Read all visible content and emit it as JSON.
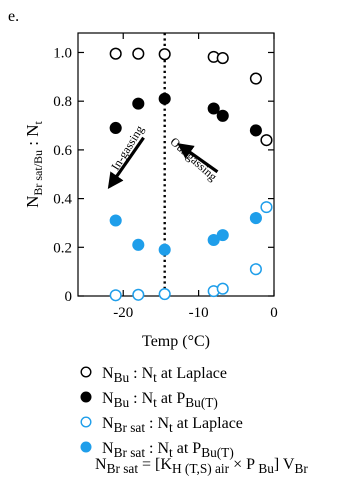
{
  "panel_label": "e.",
  "colors": {
    "black": "#000000",
    "blue": "#1f9eea",
    "axis": "#000000"
  },
  "chart_data": {
    "type": "scatter",
    "xlabel": "Temp (°C)",
    "ylabel_main": "N",
    "ylabel_sub1": "Br sat/Bu",
    "ylabel_sep": " : N",
    "ylabel_sub2": "t",
    "xlim": [
      -26,
      0
    ],
    "ylim": [
      0,
      1.08
    ],
    "xticks": [
      -20,
      -10,
      0
    ],
    "yticks": [
      0,
      0.2,
      0.4,
      0.6,
      0.8,
      1.0
    ],
    "ytick_labels": [
      "0",
      "0.2",
      "0.4",
      "0.6",
      "0.8",
      "1.0"
    ],
    "vline_x": -14.5,
    "annotations": [
      {
        "text": "In-gassing",
        "x": -19,
        "y": 0.6,
        "angle": -58,
        "arrow_from": [
          -17.3,
          0.65
        ],
        "arrow_to": [
          -21.8,
          0.45
        ]
      },
      {
        "text": "Out-gassing",
        "x": -11,
        "y": 0.55,
        "angle": 42,
        "arrow_from": [
          -7.5,
          0.51
        ],
        "arrow_to": [
          -12.5,
          0.62
        ]
      }
    ],
    "series": [
      {
        "key": "bu_laplace",
        "color": "#000000",
        "filled": false,
        "points": [
          [
            -21,
            0.995
          ],
          [
            -18,
            0.995
          ],
          [
            -14.5,
            0.993
          ],
          [
            -8,
            0.982
          ],
          [
            -6.8,
            0.977
          ],
          [
            -2.4,
            0.893
          ],
          [
            -1,
            0.64
          ]
        ]
      },
      {
        "key": "bu_p",
        "color": "#000000",
        "filled": true,
        "points": [
          [
            -21,
            0.69
          ],
          [
            -18,
            0.79
          ],
          [
            -14.5,
            0.81
          ],
          [
            -8,
            0.77
          ],
          [
            -6.8,
            0.74
          ],
          [
            -2.4,
            0.68
          ]
        ]
      },
      {
        "key": "brsat_laplace",
        "color": "#1f9eea",
        "filled": false,
        "points": [
          [
            -21,
            0.003
          ],
          [
            -18,
            0.005
          ],
          [
            -14.5,
            0.008
          ],
          [
            -8,
            0.02
          ],
          [
            -6.8,
            0.03
          ],
          [
            -2.4,
            0.11
          ],
          [
            -1,
            0.365
          ]
        ]
      },
      {
        "key": "brsat_p",
        "color": "#1f9eea",
        "filled": true,
        "points": [
          [
            -21,
            0.31
          ],
          [
            -18,
            0.21
          ],
          [
            -14.5,
            0.19
          ],
          [
            -8,
            0.23
          ],
          [
            -6.8,
            0.25
          ],
          [
            -2.4,
            0.32
          ]
        ]
      }
    ]
  },
  "legend": [
    {
      "marker_color": "#000000",
      "filled": false,
      "n": "N",
      "n_sub": "Bu",
      "sep": " : N",
      "t_sub": "t",
      "rest": " at Laplace",
      "p": "",
      "p_sub": ""
    },
    {
      "marker_color": "#000000",
      "filled": true,
      "n": "N",
      "n_sub": "Bu",
      "sep": " : N",
      "t_sub": "t",
      "rest": " at ",
      "p": "P",
      "p_sub": "Bu(T)"
    },
    {
      "marker_color": "#1f9eea",
      "filled": false,
      "n": "N",
      "n_sub": "Br sat",
      "sep": " : N",
      "t_sub": "t",
      "rest": " at Laplace",
      "p": "",
      "p_sub": ""
    },
    {
      "marker_color": "#1f9eea",
      "filled": true,
      "n": "N",
      "n_sub": "Br sat",
      "sep": " : N",
      "t_sub": "t",
      "rest": " at ",
      "p": "P",
      "p_sub": "Bu(T)"
    }
  ],
  "formula": {
    "lhs": "N",
    "lhs_sub": "Br sat",
    "eq": " = [K",
    "k_sub": "H (T,S) air",
    "times": " × P",
    "p_sub": " Bu",
    "close": "] V",
    "v_sub": "Br"
  }
}
